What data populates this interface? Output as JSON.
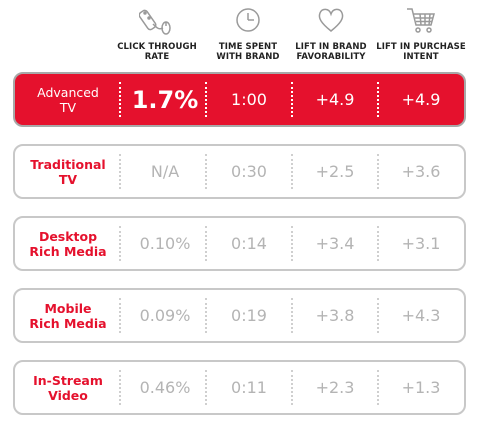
{
  "icons": [
    "mouse-click-icon",
    "clock-icon",
    "heart-icon",
    "shopping-cart-icon"
  ],
  "columns": [
    {
      "label": "CLICK THROUGH\nRATE"
    },
    {
      "label": "TIME SPENT\nWITH BRAND"
    },
    {
      "label": "LIFT IN BRAND\nFAVORABILITY"
    },
    {
      "label": "LIFT IN PURCHASE\nINTENT"
    }
  ],
  "rows": [
    {
      "label": "Advanced\nTV",
      "values": [
        "1.7%",
        "1:00",
        "+4.9",
        "+4.9"
      ],
      "highlight": true
    },
    {
      "label": "Traditional\nTV",
      "values": [
        "N/A",
        "0:30",
        "+2.5",
        "+3.6"
      ]
    },
    {
      "label": "Desktop\nRich Media",
      "values": [
        "0.10%",
        "0:14",
        "+3.4",
        "+3.1"
      ]
    },
    {
      "label": "Mobile\nRich Media",
      "values": [
        "0.09%",
        "0:19",
        "+3.8",
        "+4.3"
      ]
    },
    {
      "label": "In-Stream\nVideo",
      "values": [
        "0.46%",
        "0:11",
        "+2.3",
        "+1.3"
      ]
    }
  ],
  "colors": {
    "accent": "#e5112d",
    "muted_text": "#b4b4b4",
    "border": "#c8c8c8"
  }
}
